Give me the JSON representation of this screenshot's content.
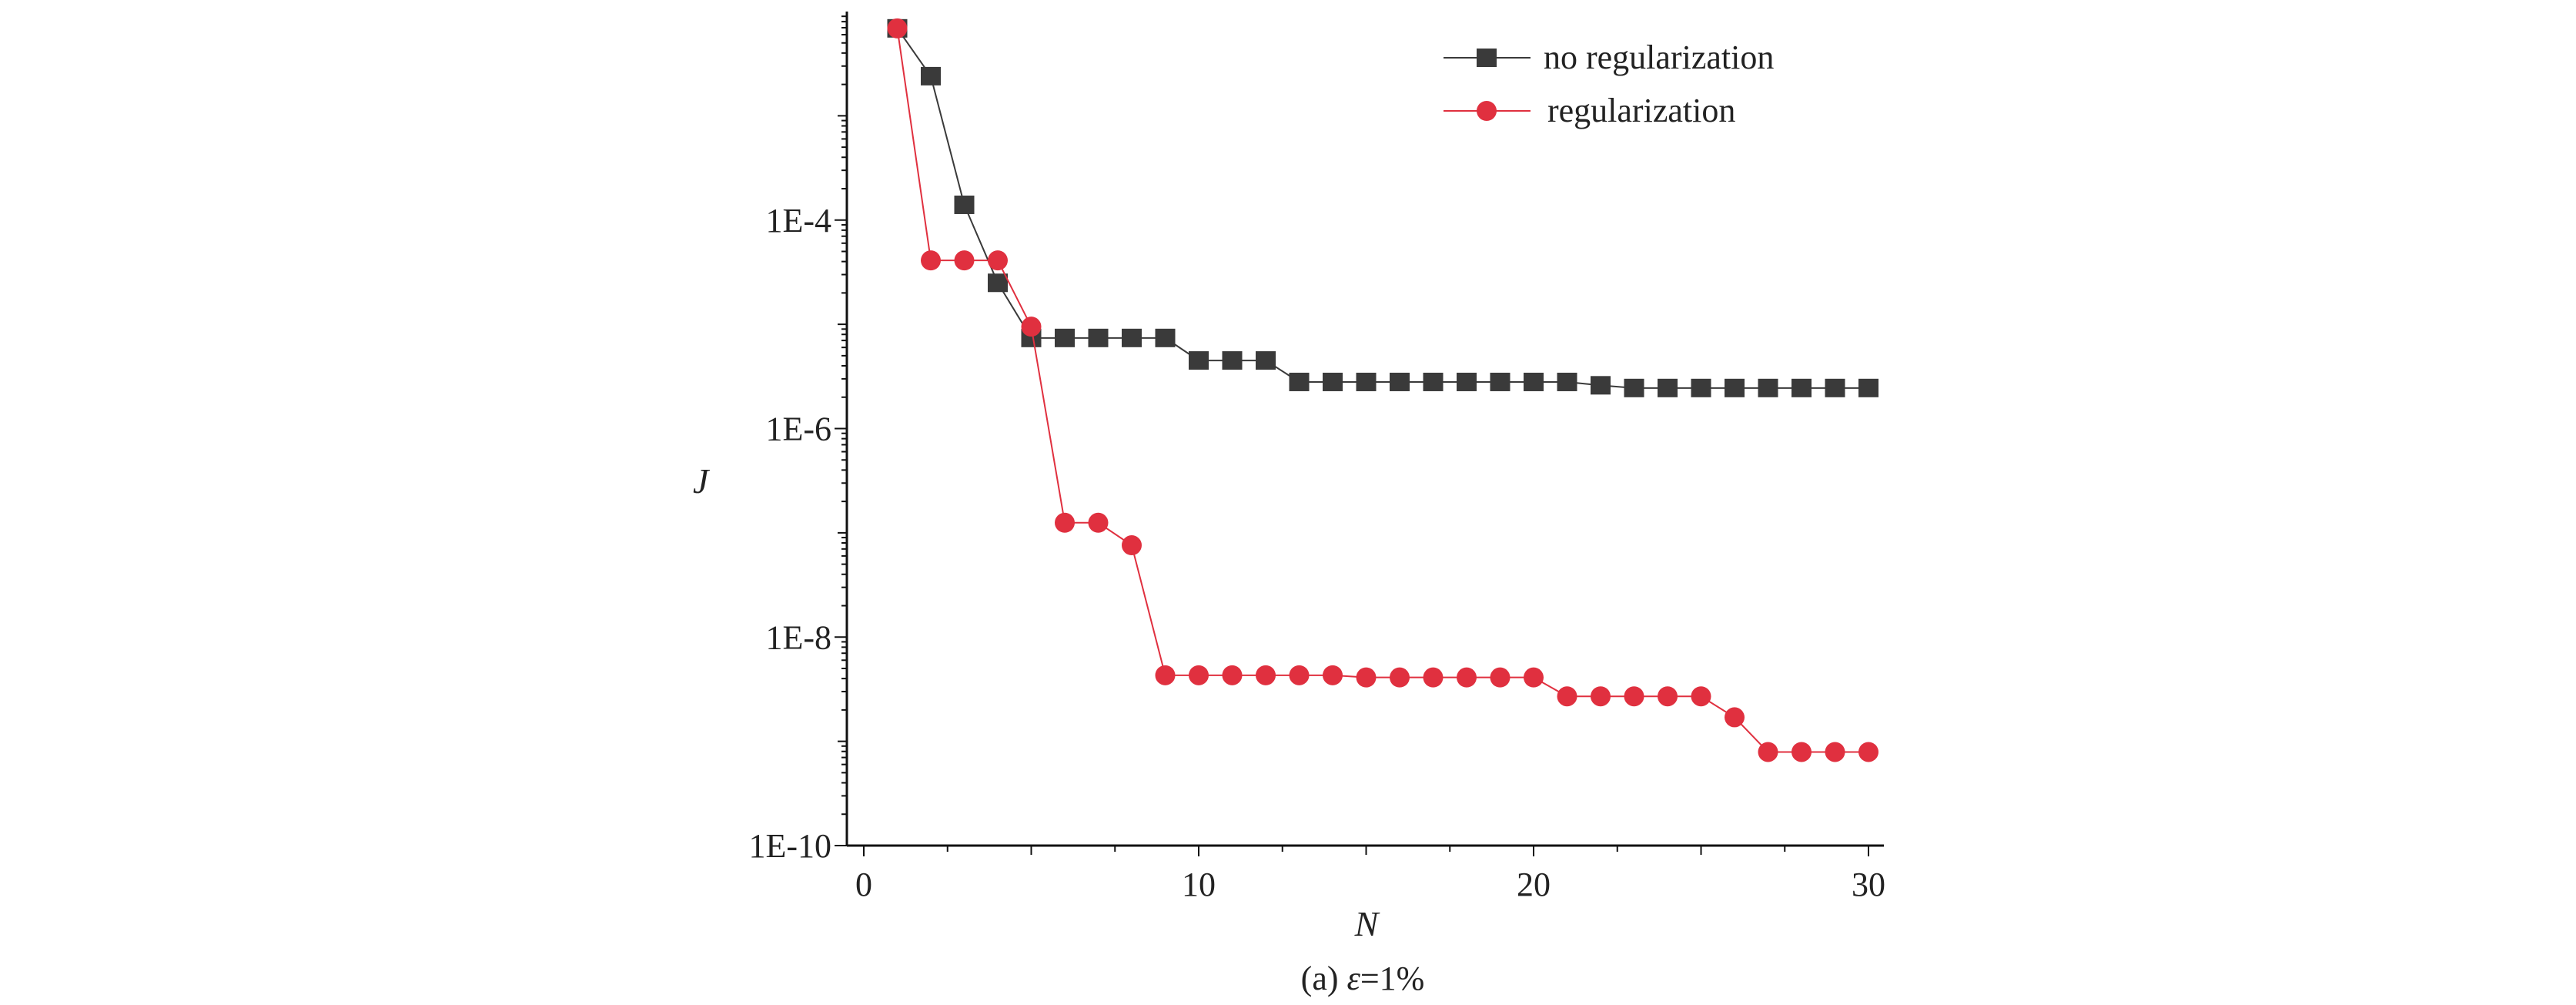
{
  "chart_data": {
    "type": "line",
    "title": "",
    "caption_prefix": "(a) ",
    "caption_symbol": "ε",
    "caption_value": "=1%",
    "xlabel": "N",
    "ylabel": "J",
    "xlim": [
      0,
      30
    ],
    "ylim": [
      1e-10,
      0.01
    ],
    "yscale": "log",
    "x_ticks": [
      0,
      10,
      20,
      30
    ],
    "x_tick_labels": [
      "0",
      "10",
      "20",
      "30"
    ],
    "y_ticks": [
      0.0001,
      1e-06,
      1e-08,
      1e-10
    ],
    "y_tick_labels": [
      "1E-4",
      "1E-6",
      "1E-8",
      "1E-10"
    ],
    "grid": false,
    "legend_position": "top-right",
    "x": [
      1,
      2,
      3,
      4,
      5,
      6,
      7,
      8,
      9,
      10,
      11,
      12,
      13,
      14,
      15,
      16,
      17,
      18,
      19,
      20,
      21,
      22,
      23,
      24,
      25,
      26,
      27,
      28,
      29,
      30
    ],
    "series": [
      {
        "name": "no regularization",
        "marker": "square",
        "color": "#3a3a3a",
        "values": [
          0.0069,
          0.0024,
          0.00014,
          2.5e-05,
          7.4e-06,
          7.4e-06,
          7.4e-06,
          7.4e-06,
          7.4e-06,
          4.5e-06,
          4.5e-06,
          4.5e-06,
          2.8e-06,
          2.8e-06,
          2.8e-06,
          2.8e-06,
          2.8e-06,
          2.8e-06,
          2.8e-06,
          2.8e-06,
          2.8e-06,
          2.6e-06,
          2.45e-06,
          2.45e-06,
          2.45e-06,
          2.45e-06,
          2.45e-06,
          2.45e-06,
          2.45e-06,
          2.45e-06
        ]
      },
      {
        "name": "regularization",
        "marker": "circle",
        "color": "#e0303f",
        "values": [
          0.0069,
          4.1e-05,
          4.1e-05,
          4.1e-05,
          9.5e-06,
          1.25e-07,
          1.25e-07,
          7.6e-08,
          4.3e-09,
          4.3e-09,
          4.3e-09,
          4.3e-09,
          4.3e-09,
          4.3e-09,
          4.1e-09,
          4.1e-09,
          4.1e-09,
          4.1e-09,
          4.1e-09,
          4.1e-09,
          2.7e-09,
          2.7e-09,
          2.7e-09,
          2.7e-09,
          2.7e-09,
          1.7e-09,
          7.9e-10,
          7.9e-10,
          7.9e-10,
          7.9e-10
        ]
      }
    ]
  }
}
